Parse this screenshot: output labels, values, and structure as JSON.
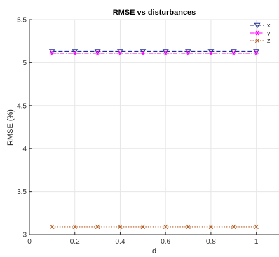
{
  "chart_data": {
    "type": "line",
    "title": "RMSE vs disturbances",
    "xlabel": "d",
    "ylabel": "RMSE (%)",
    "xlim": [
      0,
      1.1
    ],
    "ylim": [
      3,
      5.5
    ],
    "xticks": [
      0,
      0.2,
      0.4,
      0.6,
      0.8,
      1
    ],
    "xtick_labels": [
      "0",
      "0.2",
      "0.4",
      "0.6",
      "0.8",
      "1"
    ],
    "yticks": [
      3,
      3.5,
      4,
      4.5,
      5,
      5.5
    ],
    "ytick_labels": [
      "3",
      "3.5",
      "4",
      "4.5",
      "5",
      "5.5"
    ],
    "grid": true,
    "legend_position": "top-right",
    "x": [
      0.1,
      0.2,
      0.3,
      0.4,
      0.5,
      0.6,
      0.7,
      0.8,
      0.9,
      1.0
    ],
    "series": [
      {
        "name": "x",
        "values": [
          5.13,
          5.13,
          5.13,
          5.13,
          5.13,
          5.13,
          5.13,
          5.13,
          5.13,
          5.13
        ],
        "color": "#1f2f8f",
        "line_style": "dashed",
        "marker": "triangle-down"
      },
      {
        "name": "y",
        "values": [
          5.11,
          5.11,
          5.11,
          5.11,
          5.11,
          5.11,
          5.11,
          5.11,
          5.11,
          5.11
        ],
        "color": "#ff00ff",
        "line_style": "dash-dot",
        "marker": "asterisk"
      },
      {
        "name": "z",
        "values": [
          3.09,
          3.09,
          3.09,
          3.09,
          3.09,
          3.09,
          3.09,
          3.09,
          3.09,
          3.09
        ],
        "color": "#b35a1f",
        "line_style": "dotted",
        "marker": "x"
      }
    ]
  }
}
